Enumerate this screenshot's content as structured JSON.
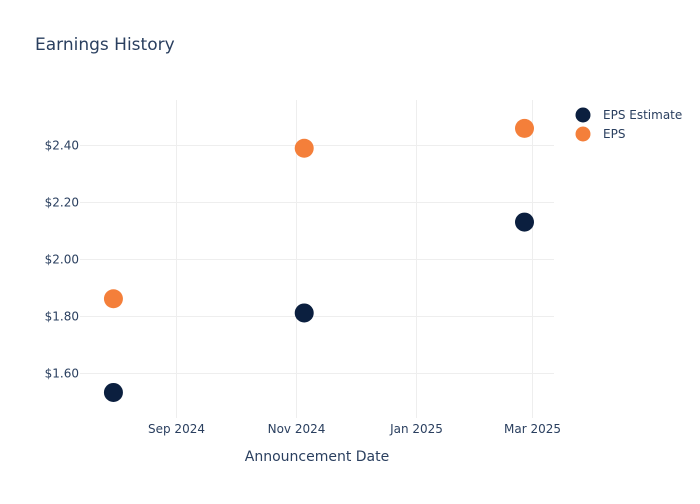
{
  "chart_data": {
    "type": "scatter",
    "title": "Earnings History",
    "xlabel": "Announcement Date",
    "ylabel": "",
    "x_axis_type": "date",
    "xlim": [
      "2024-07-14",
      "2025-03-12"
    ],
    "ylim": [
      1.44,
      2.56
    ],
    "x_ticks": [
      {
        "value": "2024-09-01",
        "label": "Sep 2024"
      },
      {
        "value": "2024-11-01",
        "label": "Nov 2024"
      },
      {
        "value": "2025-01-01",
        "label": "Jan 2025"
      },
      {
        "value": "2025-03-01",
        "label": "Mar 2025"
      }
    ],
    "y_ticks": [
      {
        "value": 1.6,
        "label": "$1.60"
      },
      {
        "value": 1.8,
        "label": "$1.80"
      },
      {
        "value": 2.0,
        "label": "$2.00"
      },
      {
        "value": 2.2,
        "label": "$2.20"
      },
      {
        "value": 2.4,
        "label": "$2.40"
      }
    ],
    "grid": true,
    "legend_position": "top-right",
    "series": [
      {
        "name": "EPS Estimate",
        "color": "#0b1f3f",
        "points": [
          {
            "x": "2024-07-31",
            "y": 1.53
          },
          {
            "x": "2024-11-05",
            "y": 1.81
          },
          {
            "x": "2025-02-25",
            "y": 2.13
          }
        ]
      },
      {
        "name": "EPS",
        "color": "#f47f3a",
        "points": [
          {
            "x": "2024-07-31",
            "y": 1.86
          },
          {
            "x": "2024-11-05",
            "y": 2.39
          },
          {
            "x": "2025-02-25",
            "y": 2.46
          }
        ]
      }
    ]
  }
}
